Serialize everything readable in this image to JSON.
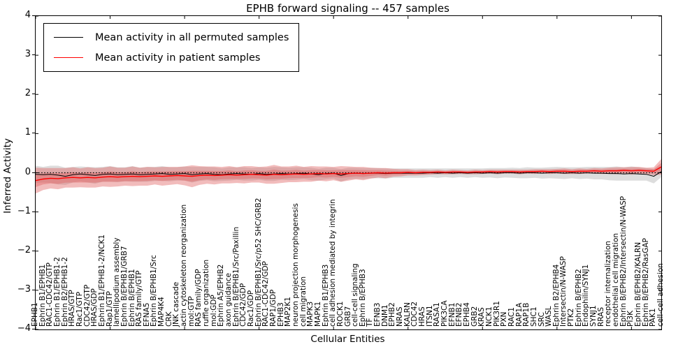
{
  "chart_data": {
    "type": "line",
    "title": "EPHB forward signaling -- 457 samples",
    "xlabel": "Cellular Entities",
    "ylabel": "Inferred Activity",
    "ylim": [
      -4,
      4
    ],
    "yticks": [
      4,
      3,
      2,
      1,
      0,
      -1,
      -2,
      -3,
      -4
    ],
    "ytick_labels": [
      "4",
      "3",
      "2",
      "1",
      "0",
      "−1",
      "−2",
      "−3",
      "−4"
    ],
    "grid": false,
    "legend_position": "upper left",
    "reference_line": {
      "y": 0,
      "style": "dotted",
      "color": "#000000"
    },
    "colors": {
      "permuted_line": "#000000",
      "patient_line": "#ff0000",
      "permuted_band": "#bbbbbb",
      "patient_band": "#e06060"
    },
    "categories": [
      "EPHB1",
      "Ephrin B1/EPHB1",
      "RAC1-CDC42/GTP",
      "Ephrin B1/EPHB1-2",
      "Ephrin B2/EPHB1-2",
      "HRAS/GTP",
      "Rac1/GTP",
      "CDC42/GTP",
      "HRAS/GDP",
      "Ephrin B1/EPHB1-2/NCK1",
      "Rap1/GTP",
      "lamellipodium assembly",
      "Ephrin B/EPHB1/GRB7",
      "Ephrin B/EPHB1",
      "RAS family/GTP",
      "EFNA5",
      "Ephrin B/EPHB1/Src",
      "MAP4K4",
      "CRK",
      "JNK cascade",
      "actin cytoskeleton reorganization",
      "mol:GTP",
      "RAS family/GDP",
      "ruffle organization",
      "mol:GDP",
      "Ephrin A5/EPHB2",
      "axon guidance",
      "Ephrin B/EPHB1/Src/Paxillin",
      "CDC42/GDP",
      "Rac1/GDP",
      "Ephrin B/EPHB1/Src/p52 SHC/GRB2",
      "RAC1-CDC42/GDP",
      "RAP1/GDP",
      "EPHB3",
      "MAP2K1",
      "neuron projection morphogenesis",
      "cell migration",
      "MAPK3",
      "MAPK1",
      "Ephrin B1/EPHB3",
      "cell adhesion mediated by integrin",
      "ROCK1",
      "GRB7",
      "cell-cell signaling",
      "Ephrin B/EPHB3",
      "TF",
      "EFNB3",
      "DNM1",
      "EPHB2",
      "NRAS",
      "KALRN",
      "CDC42",
      "HRAS",
      "ITSN1",
      "RASA1",
      "PIK3CA",
      "EFNB1",
      "EFNB2",
      "EPHB4",
      "GRB2",
      "KRAS",
      "NCK1",
      "PIK3R1",
      "PXN",
      "RAC1",
      "RAP1A",
      "RAP1B",
      "SHC1",
      "SRC",
      "WASL",
      "Ephrin B2/EPHB4",
      "Intersectin/N-WASP",
      "PTK2",
      "Ephrin B/EPHB2",
      "Endophilin/SYNJ1",
      "SYNJ1",
      "RRAS",
      "receptor internalization",
      "endothelial cell migration",
      "Ephrin B/EPHB2/Intersectin/N-WASP",
      "PI3K",
      "Ephrin B/EPHB2/KALRN",
      "Ephrin B/EPHB2/RasGAP",
      "PAK1",
      "cell-cell adhesion"
    ],
    "series": [
      {
        "name": "Mean activity in all permuted samples",
        "color": "#000000",
        "values": [
          -0.04,
          -0.05,
          -0.04,
          -0.06,
          -0.09,
          -0.05,
          -0.03,
          -0.05,
          -0.07,
          -0.04,
          -0.03,
          -0.05,
          -0.04,
          -0.03,
          -0.05,
          -0.04,
          -0.03,
          -0.02,
          -0.04,
          -0.03,
          -0.02,
          -0.05,
          -0.03,
          -0.02,
          -0.04,
          -0.05,
          -0.03,
          -0.02,
          -0.03,
          -0.04,
          -0.02,
          -0.04,
          -0.03,
          -0.02,
          -0.03,
          -0.02,
          -0.01,
          -0.03,
          -0.05,
          -0.02,
          -0.01,
          -0.07,
          -0.02,
          -0.01,
          -0.02,
          -0.01,
          -0.01,
          -0.02,
          -0.01,
          -0.01,
          -0.01,
          -0.01,
          -0.01,
          0,
          -0.01,
          0,
          -0.01,
          0,
          -0.01,
          0,
          -0.01,
          0,
          -0.01,
          0,
          0,
          -0.01,
          0,
          0,
          -0.01,
          0,
          0,
          -0.01,
          0,
          -0.01,
          0,
          -0.01,
          -0.01,
          -0.02,
          -0.02,
          -0.03,
          -0.02,
          -0.03,
          -0.04,
          -0.09,
          0.03
        ],
        "band_upper": [
          0.18,
          0.15,
          0.18,
          0.18,
          0.13,
          0.15,
          0.16,
          0.15,
          0.14,
          0.15,
          0.17,
          0.14,
          0.14,
          0.17,
          0.13,
          0.15,
          0.15,
          0.17,
          0.14,
          0.14,
          0.16,
          0.15,
          0.15,
          0.15,
          0.14,
          0.11,
          0.14,
          0.14,
          0.14,
          0.12,
          0.14,
          0.13,
          0.15,
          0.14,
          0.13,
          0.14,
          0.14,
          0.13,
          0.1,
          0.13,
          0.13,
          0.09,
          0.13,
          0.13,
          0.12,
          0.12,
          0.12,
          0.11,
          0.11,
          0.11,
          0.11,
          0.11,
          0.11,
          0.11,
          0.11,
          0.11,
          0.11,
          0.11,
          0.11,
          0.11,
          0.11,
          0.12,
          0.12,
          0.12,
          0.13,
          0.12,
          0.14,
          0.13,
          0.13,
          0.14,
          0.15,
          0.14,
          0.14,
          0.14,
          0.15,
          0.15,
          0.15,
          0.15,
          0.16,
          0.14,
          0.16,
          0.14,
          0.12,
          0.09,
          0.17
        ],
        "band_lower": [
          -0.26,
          -0.25,
          -0.26,
          -0.3,
          -0.31,
          -0.25,
          -0.22,
          -0.25,
          -0.28,
          -0.23,
          -0.23,
          -0.24,
          -0.22,
          -0.23,
          -0.23,
          -0.23,
          -0.21,
          -0.21,
          -0.22,
          -0.2,
          -0.2,
          -0.25,
          -0.21,
          -0.19,
          -0.22,
          -0.21,
          -0.2,
          -0.18,
          -0.2,
          -0.2,
          -0.18,
          -0.21,
          -0.21,
          -0.18,
          -0.19,
          -0.18,
          -0.16,
          -0.19,
          -0.2,
          -0.17,
          -0.15,
          -0.23,
          -0.17,
          -0.15,
          -0.16,
          -0.14,
          -0.14,
          -0.15,
          -0.13,
          -0.13,
          -0.13,
          -0.13,
          -0.13,
          -0.11,
          -0.13,
          -0.11,
          -0.13,
          -0.11,
          -0.13,
          -0.11,
          -0.13,
          -0.12,
          -0.14,
          -0.12,
          -0.13,
          -0.14,
          -0.14,
          -0.13,
          -0.15,
          -0.14,
          -0.15,
          -0.16,
          -0.14,
          -0.16,
          -0.15,
          -0.17,
          -0.17,
          -0.19,
          -0.2,
          -0.2,
          -0.2,
          -0.2,
          -0.2,
          -0.27,
          -0.11
        ]
      },
      {
        "name": "Mean activity in patient samples",
        "color": "#ff0000",
        "values": [
          -0.2,
          -0.16,
          -0.14,
          -0.15,
          -0.13,
          -0.12,
          -0.13,
          -0.12,
          -0.13,
          -0.11,
          -0.1,
          -0.11,
          -0.1,
          -0.09,
          -0.1,
          -0.09,
          -0.08,
          -0.09,
          -0.08,
          -0.07,
          -0.08,
          -0.09,
          -0.07,
          -0.06,
          -0.07,
          -0.06,
          -0.05,
          -0.06,
          -0.05,
          -0.04,
          -0.05,
          -0.06,
          -0.04,
          -0.05,
          -0.04,
          -0.03,
          -0.04,
          -0.03,
          -0.02,
          -0.03,
          -0.02,
          -0.03,
          -0.02,
          -0.01,
          -0.02,
          -0.01,
          0,
          -0.01,
          0,
          0,
          0.01,
          0,
          0.01,
          0.01,
          0.02,
          0.01,
          0.02,
          0.02,
          0.01,
          0.02,
          0.02,
          0.03,
          0.02,
          0.03,
          0.03,
          0.02,
          0.03,
          0.03,
          0.04,
          0.03,
          0.04,
          0.04,
          0.03,
          0.04,
          0.04,
          0.05,
          0.04,
          0.05,
          0.05,
          0.06,
          0.05,
          0.06,
          0.05,
          0.04,
          0.15
        ],
        "band_upper": [
          0.13,
          0.12,
          0.12,
          0.12,
          0.12,
          0.14,
          0.11,
          0.14,
          0.12,
          0.13,
          0.16,
          0.13,
          0.13,
          0.16,
          0.13,
          0.15,
          0.14,
          0.15,
          0.15,
          0.15,
          0.16,
          0.19,
          0.17,
          0.16,
          0.16,
          0.15,
          0.17,
          0.14,
          0.17,
          0.17,
          0.15,
          0.16,
          0.2,
          0.16,
          0.16,
          0.18,
          0.15,
          0.17,
          0.16,
          0.16,
          0.15,
          0.17,
          0.16,
          0.15,
          0.15,
          0.13,
          0.12,
          0.12,
          0.1,
          0.09,
          0.09,
          0.07,
          0.08,
          0.07,
          0.08,
          0.06,
          0.08,
          0.07,
          0.06,
          0.08,
          0.07,
          0.08,
          0.08,
          0.08,
          0.08,
          0.08,
          0.08,
          0.09,
          0.09,
          0.09,
          0.1,
          0.11,
          0.09,
          0.11,
          0.1,
          0.12,
          0.11,
          0.13,
          0.14,
          0.14,
          0.15,
          0.15,
          0.13,
          0.14,
          0.35
        ],
        "band_lower": [
          -0.53,
          -0.44,
          -0.4,
          -0.42,
          -0.38,
          -0.38,
          -0.37,
          -0.38,
          -0.38,
          -0.35,
          -0.36,
          -0.35,
          -0.33,
          -0.34,
          -0.33,
          -0.33,
          -0.3,
          -0.33,
          -0.31,
          -0.29,
          -0.32,
          -0.37,
          -0.31,
          -0.28,
          -0.3,
          -0.27,
          -0.27,
          -0.26,
          -0.27,
          -0.25,
          -0.25,
          -0.28,
          -0.28,
          -0.26,
          -0.24,
          -0.24,
          -0.23,
          -0.23,
          -0.2,
          -0.22,
          -0.19,
          -0.23,
          -0.2,
          -0.17,
          -0.19,
          -0.15,
          -0.12,
          -0.14,
          -0.1,
          -0.09,
          -0.07,
          -0.07,
          -0.06,
          -0.05,
          -0.04,
          -0.04,
          -0.04,
          -0.03,
          -0.04,
          -0.04,
          -0.03,
          -0.02,
          -0.04,
          -0.02,
          -0.02,
          -0.04,
          -0.02,
          -0.03,
          -0.01,
          -0.03,
          -0.02,
          -0.03,
          -0.03,
          -0.03,
          -0.02,
          -0.02,
          -0.03,
          -0.03,
          -0.04,
          -0.02,
          -0.05,
          -0.03,
          -0.03,
          -0.06,
          -0.05
        ]
      }
    ]
  }
}
